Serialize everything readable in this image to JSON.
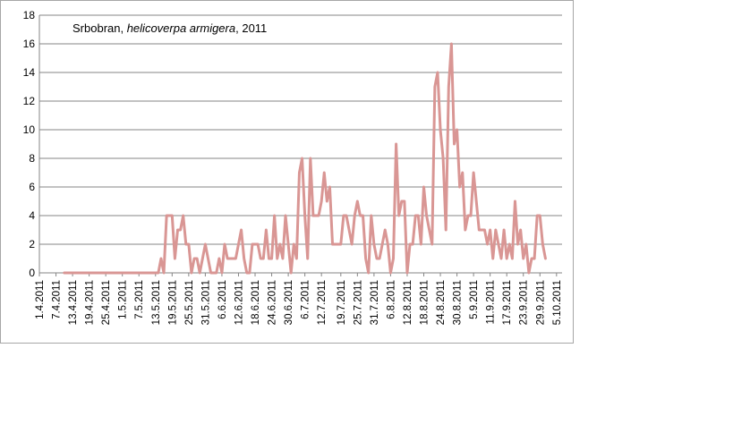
{
  "chart_data": {
    "type": "line",
    "title_place": "Srbobran, ",
    "title_species": "helicoverpa armigera",
    "title_year": ", 2011",
    "ylim": [
      0,
      18
    ],
    "y_ticks": [
      0,
      2,
      4,
      6,
      8,
      10,
      12,
      14,
      16,
      18
    ],
    "x_tick_labels": [
      "1.4.2011",
      "7.4.2011",
      "13.4.2011",
      "19.4.2011",
      "25.4.2011",
      "1.5.2011",
      "7.5.2011",
      "13.5.2011",
      "19.5.2011",
      "25.5.2011",
      "31.5.2011",
      "6.6.2011",
      "12.6.2011",
      "18.6.2011",
      "24.6.2011",
      "30.6.2011",
      "6.7.2011",
      "12.7.2011",
      "19.7.2011",
      "25.7.2011",
      "31.7.2011",
      "6.8.2011",
      "12.8.2011",
      "18.8.2011",
      "24.8.2011",
      "30.8.2011",
      "5.9.2011",
      "11.9.2011",
      "17.9.2011",
      "23.9.2011",
      "29.9.2011",
      "5.10.2011"
    ],
    "x_start": "1.4.2011",
    "x_end": "7.10.2011",
    "grid": true,
    "legend": "none",
    "series": [
      {
        "color": "#d99694",
        "start_date": "10.4.2011",
        "values": [
          0,
          0,
          0,
          0,
          0,
          0,
          0,
          0,
          0,
          0,
          0,
          0,
          0,
          0,
          0,
          0,
          0,
          0,
          0,
          0,
          0,
          0,
          0,
          0,
          0,
          0,
          0,
          0,
          0,
          0,
          0,
          0,
          0,
          0,
          0,
          1,
          0,
          4,
          4,
          4,
          1,
          3,
          3,
          4,
          2,
          2,
          0,
          1,
          1,
          0,
          1,
          2,
          1,
          0,
          0,
          0,
          1,
          0,
          2,
          1,
          1,
          1,
          1,
          2,
          3,
          1,
          0,
          0,
          2,
          2,
          2,
          1,
          1,
          3,
          1,
          1,
          4,
          1,
          2,
          1,
          4,
          2,
          0,
          2,
          1,
          7,
          8,
          4,
          1,
          8,
          4,
          4,
          4,
          5,
          7,
          5,
          6,
          2,
          2,
          2,
          2,
          4,
          4,
          3,
          2,
          4,
          5,
          4,
          4,
          1,
          0,
          4,
          2,
          1,
          1,
          2,
          3,
          2,
          0,
          1,
          9,
          4,
          5,
          5,
          0,
          2,
          2,
          4,
          4,
          2,
          6,
          4,
          3,
          2,
          13,
          14,
          10,
          8,
          3,
          13,
          16,
          9,
          10,
          6,
          7,
          3,
          4,
          4,
          7,
          5,
          3,
          3,
          3,
          2,
          3,
          1,
          3,
          2,
          1,
          3,
          1,
          2,
          1,
          5,
          2,
          3,
          1,
          2,
          0,
          1,
          1,
          4,
          4,
          2,
          1
        ]
      }
    ]
  }
}
